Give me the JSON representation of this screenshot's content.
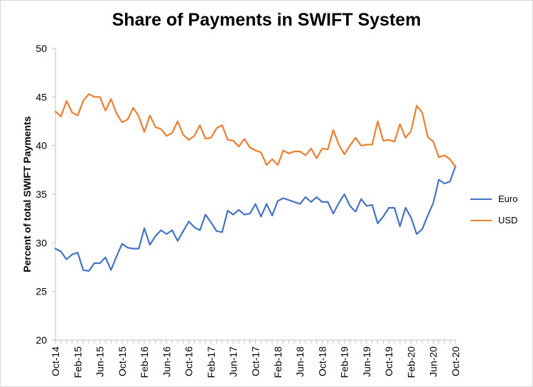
{
  "chart_data": {
    "type": "line",
    "title": "Share of Payments in SWIFT System",
    "xlabel": "",
    "ylabel": "Percent of total SWIFT Payments",
    "ylim": [
      20,
      50
    ],
    "yticks": [
      20,
      25,
      30,
      35,
      40,
      45,
      50
    ],
    "grid": false,
    "legend_position": "right",
    "x_start": "2014-10",
    "x_tick_labels": [
      "Oct-14",
      "Feb-15",
      "Jun-15",
      "Oct-15",
      "Feb-16",
      "Jun-16",
      "Oct-16",
      "Feb-17",
      "Jun-17",
      "Oct-17",
      "Feb-18",
      "Jun-18",
      "Oct-18",
      "Feb-19",
      "Jun-19",
      "Oct-19",
      "Feb-20",
      "Jun-20",
      "Oct-20"
    ],
    "x": [
      "2014-10",
      "2014-11",
      "2014-12",
      "2015-01",
      "2015-02",
      "2015-03",
      "2015-04",
      "2015-05",
      "2015-06",
      "2015-07",
      "2015-08",
      "2015-09",
      "2015-10",
      "2015-11",
      "2015-12",
      "2016-01",
      "2016-02",
      "2016-03",
      "2016-04",
      "2016-05",
      "2016-06",
      "2016-07",
      "2016-08",
      "2016-09",
      "2016-10",
      "2016-11",
      "2016-12",
      "2017-01",
      "2017-02",
      "2017-03",
      "2017-04",
      "2017-05",
      "2017-06",
      "2017-07",
      "2017-08",
      "2017-09",
      "2017-10",
      "2017-11",
      "2017-12",
      "2018-01",
      "2018-02",
      "2018-03",
      "2018-04",
      "2018-05",
      "2018-06",
      "2018-07",
      "2018-08",
      "2018-09",
      "2018-10",
      "2018-11",
      "2018-12",
      "2019-01",
      "2019-02",
      "2019-03",
      "2019-04",
      "2019-05",
      "2019-06",
      "2019-07",
      "2019-08",
      "2019-09",
      "2019-10",
      "2019-11",
      "2019-12",
      "2020-01",
      "2020-02",
      "2020-03",
      "2020-04",
      "2020-05",
      "2020-06",
      "2020-07",
      "2020-08",
      "2020-09",
      "2020-10"
    ],
    "series": [
      {
        "name": "Euro",
        "color": "#4472C4",
        "values": [
          29.4,
          29.1,
          28.3,
          28.8,
          29.0,
          27.2,
          27.1,
          27.9,
          27.9,
          28.5,
          27.2,
          28.6,
          29.9,
          29.5,
          29.4,
          29.4,
          31.5,
          29.8,
          30.7,
          31.3,
          30.9,
          31.3,
          30.2,
          31.2,
          32.2,
          31.6,
          31.3,
          32.9,
          32.1,
          31.2,
          31.1,
          33.3,
          32.9,
          33.4,
          32.9,
          33.0,
          34.0,
          32.7,
          34.0,
          32.8,
          34.3,
          34.6,
          34.4,
          34.2,
          34.0,
          34.7,
          34.2,
          34.7,
          34.2,
          34.2,
          33.0,
          34.1,
          35.0,
          33.8,
          33.2,
          34.5,
          33.8,
          33.9,
          32.0,
          32.7,
          33.6,
          33.6,
          31.7,
          33.6,
          32.6,
          30.9,
          31.4,
          32.8,
          34.1,
          36.5,
          36.1,
          36.3,
          37.9
        ]
      },
      {
        "name": "USD",
        "color": "#ED7D31",
        "values": [
          43.5,
          43.0,
          44.6,
          43.4,
          43.1,
          44.6,
          45.3,
          45.0,
          45.0,
          43.6,
          44.8,
          43.3,
          42.4,
          42.7,
          43.9,
          43.0,
          41.4,
          43.1,
          41.9,
          41.7,
          41.0,
          41.3,
          42.5,
          41.1,
          40.6,
          41.0,
          42.1,
          40.7,
          40.8,
          41.8,
          42.1,
          40.6,
          40.5,
          39.9,
          40.7,
          39.8,
          39.5,
          39.3,
          38.0,
          38.6,
          38.0,
          39.5,
          39.2,
          39.4,
          39.4,
          39.0,
          39.7,
          38.7,
          39.7,
          39.6,
          41.6,
          40.1,
          39.1,
          40.0,
          40.8,
          40.0,
          40.1,
          40.1,
          42.5,
          40.5,
          40.6,
          40.4,
          42.2,
          40.8,
          41.5,
          44.1,
          43.4,
          40.9,
          40.4,
          38.8,
          39.0,
          38.6,
          37.8
        ]
      }
    ]
  }
}
